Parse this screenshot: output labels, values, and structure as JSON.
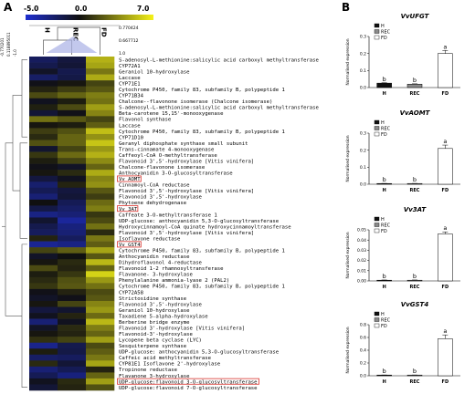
{
  "panel_a_label": "A",
  "panel_b_label": "B",
  "colorbar": {
    "min_label": "-5.0",
    "mid_label": "0.0",
    "max_label": "7.0",
    "low_color": "#1f2fd0",
    "mid_color": "#101010",
    "high_color": "#f5f218"
  },
  "highlight_color": "#d9312b",
  "tree_labels": {
    "top_right_1": "0.770424",
    "top_right_2": "0.667712",
    "top_right_3": "1.0",
    "left_1": "-0.770201",
    "left_2": "0.118895011",
    "left_3": "-1.0"
  },
  "chart_data": [
    {
      "type": "heatmap",
      "columns": [
        "H",
        "REC",
        "FD"
      ],
      "rows": [
        "S-adenosyl-L-methionine:salicylic acid carboxyl methyltransferase",
        "CYP72A1",
        "Geraniol 10-hydroxylase",
        "Laccase",
        "CYP71E1",
        "Cytochrome P450, family 83, subfamily B, polypeptide 1",
        "CYP71B34",
        "Chalcone--flavonone isomerase (Chalcone isomerase)",
        "S-adenosyl-L-methionine:salicylic acid carboxyl methyltransferase",
        "Beta-carotene 15,15'-monooxygenase",
        "Flavonol synthase",
        "Laccase",
        "Cytochrome P450, family 83, subfamily B, polypeptide 1",
        "CYP71D10",
        "Geranyl diphosphate synthase small subunit",
        "Trans-cinnamate 4-monooxygenase",
        "Caffeoyl-CoA O-methyltransferase",
        "Flavonoid 3',5'-hydroxylase [Vitis vinifera]",
        "Chalcone-flavonone isomerase",
        "Anthocyanidin 3-O-glucosyltransferase",
        "Vv AOMT",
        "Cinnamoyl-CoA reductase",
        "Flavonoid 3',5'-hydroxylase [Vitis vinifera]",
        "Flavonoid 3',5'-hydroxylase",
        "Phytoene dehydrogenase",
        "Vv 3AT",
        "Caffeate 3-O-methyltransferase 1",
        "UDP-glucose: anthocyanidin 5,3-O-glucosyltransferase",
        "Hydroxycinnamoyl-CoA quinate hydroxycinnamoyltransferase",
        "Flavonoid 3',5'-hydroxylase [Vitis vinifera]",
        "Isoflavone reductase",
        "Vv GST4",
        "Cytochrome P450, family 83, subfamily B, polypeptide 1",
        "Anthocyanidin reductase",
        "Dihydroflavonol 4-reductase",
        "Flavonoid 1-2 rhamnosyltransferase",
        "Flavanone- 3-hydroxylase",
        "Phenylalanine ammonia-lyase 2 (PAL2)",
        "Cytochrome P450, family 83, subfamily B, polypeptide 1",
        "CYP72A58",
        "Strictosidine synthase",
        "Flavonoid 3',5'-hydroxylase",
        "Geraniol 10-hydroxylase",
        "Taxadiene 5-alpha-hydroxylase",
        "Berberine bridge enzyme",
        "Flavonoid 3'-hydroxylase [Vitis vinifera]",
        "Flavonoid-3'-hydroxylase",
        "Lycopene beta cyclase (LYC)",
        "Sesquiterpene synthase",
        "UDP-glucose: anthocyanidin 5,3-O-glucosyltransferase",
        "Caffeic acid methyltransferase",
        "CYP81E1 Isoflavone 2'-hydroxylase",
        "Tropinone reductase",
        "Flavanone 3-hydroxylase",
        "UDP-glucose:flavonoid 3-O-glucosyltransferase",
        "UDP-glucose:flavonoid 7-O-glucosyltransferase"
      ],
      "highlighted_rows": [
        "Vv AOMT",
        "Vv 3AT",
        "Vv GST4",
        "UDP-glucose:flavonoid 3-O-glucosyltransferase"
      ],
      "values": [
        [
          -2.0,
          -1.2,
          5.0
        ],
        [
          -1.6,
          -1.0,
          4.6
        ],
        [
          -0.6,
          -1.6,
          3.2
        ],
        [
          -2.2,
          -1.4,
          4.8
        ],
        [
          -0.2,
          0.2,
          1.6
        ],
        [
          0.6,
          1.4,
          2.2
        ],
        [
          1.8,
          2.6,
          3.4
        ],
        [
          -0.4,
          0.4,
          3.0
        ],
        [
          0.5,
          1.8,
          4.4
        ],
        [
          -1.0,
          -0.2,
          3.6
        ],
        [
          3.0,
          2.2,
          1.6
        ],
        [
          0.2,
          0.4,
          2.4
        ],
        [
          1.4,
          2.0,
          5.4
        ],
        [
          0.8,
          2.6,
          4.0
        ],
        [
          2.0,
          2.6,
          5.6
        ],
        [
          -0.8,
          1.6,
          4.2
        ],
        [
          1.2,
          2.8,
          5.0
        ],
        [
          0.4,
          1.6,
          3.8
        ],
        [
          -0.2,
          -0.6,
          2.6
        ],
        [
          0.2,
          0.8,
          4.8
        ],
        [
          -1.2,
          -0.4,
          3.6
        ],
        [
          -2.4,
          0.6,
          4.0
        ],
        [
          -1.8,
          -1.2,
          2.2
        ],
        [
          -2.6,
          -1.0,
          1.4
        ],
        [
          0.0,
          -1.8,
          2.8
        ],
        [
          -1.4,
          -2.2,
          3.4
        ],
        [
          -3.0,
          -2.6,
          1.2
        ],
        [
          -0.8,
          -3.6,
          1.8
        ],
        [
          -1.6,
          -2.8,
          3.0
        ],
        [
          -2.0,
          -2.6,
          0.8
        ],
        [
          0.6,
          -2.0,
          3.2
        ],
        [
          -3.4,
          -3.0,
          2.4
        ],
        [
          1.6,
          2.4,
          4.6
        ],
        [
          -0.6,
          0.0,
          2.2
        ],
        [
          0.2,
          0.8,
          5.2
        ],
        [
          1.8,
          0.6,
          2.6
        ],
        [
          0.4,
          1.2,
          6.0
        ],
        [
          0.8,
          2.0,
          4.2
        ],
        [
          1.2,
          2.2,
          3.0
        ],
        [
          -0.2,
          0.6,
          1.8
        ],
        [
          -0.6,
          -0.2,
          2.2
        ],
        [
          0.2,
          1.6,
          3.6
        ],
        [
          -1.2,
          -0.8,
          4.2
        ],
        [
          -0.4,
          0.6,
          2.8
        ],
        [
          -2.6,
          -0.4,
          5.2
        ],
        [
          -0.6,
          0.8,
          3.4
        ],
        [
          0.2,
          0.6,
          2.6
        ],
        [
          1.0,
          1.6,
          4.4
        ],
        [
          -3.2,
          -1.6,
          1.8
        ],
        [
          0.4,
          -1.4,
          2.4
        ],
        [
          -2.2,
          -2.0,
          3.2
        ],
        [
          0.8,
          -1.0,
          4.6
        ],
        [
          -2.6,
          -1.8,
          0.6
        ],
        [
          -1.8,
          -2.8,
          2.6
        ],
        [
          -0.4,
          0.8,
          4.4
        ],
        [
          -1.0,
          0.6,
          2.0
        ]
      ]
    },
    {
      "type": "bar",
      "title": "VvUFGT",
      "ylabel": "Normalised expression",
      "categories": [
        "H",
        "REC",
        "FD"
      ],
      "values": [
        0.026,
        0.02,
        0.2
      ],
      "errors": [
        0.002,
        0.002,
        0.018
      ],
      "sig_letters": [
        "b",
        "b",
        "a"
      ],
      "legend": [
        "H",
        "REC",
        "FD"
      ],
      "ylim": [
        0,
        0.3
      ],
      "yticks": [
        "0.0",
        "0.1",
        "0.2",
        "0.3"
      ]
    },
    {
      "type": "bar",
      "title": "VvAOMT",
      "ylabel": "Normalised expression",
      "categories": [
        "H",
        "REC",
        "FD"
      ],
      "values": [
        0.001,
        0.001,
        0.21
      ],
      "errors": [
        0.0005,
        0.0005,
        0.02
      ],
      "sig_letters": [
        "b",
        "b",
        "a"
      ],
      "legend": [
        "H",
        "REC",
        "FD"
      ],
      "ylim": [
        0,
        0.3
      ],
      "yticks": [
        "0.0",
        "0.1",
        "0.2",
        "0.3"
      ]
    },
    {
      "type": "bar",
      "title": "Vv3AT",
      "ylabel": "Normalised expression",
      "categories": [
        "H",
        "REC",
        "FD"
      ],
      "values": [
        0.0005,
        0.0004,
        0.046
      ],
      "errors": [
        0.0002,
        0.0002,
        0.002
      ],
      "sig_letters": [
        "b",
        "b",
        "a"
      ],
      "legend": [
        "H",
        "REC",
        "FD"
      ],
      "ylim": [
        0,
        0.05
      ],
      "yticks": [
        "0.00",
        "0.01",
        "0.02",
        "0.03",
        "0.04",
        "0.05"
      ]
    },
    {
      "type": "bar",
      "title": "VvGST4",
      "ylabel": "Normalised expression",
      "categories": [
        "H",
        "REC",
        "FD"
      ],
      "values": [
        0.002,
        0.002,
        0.58
      ],
      "errors": [
        0.001,
        0.001,
        0.06
      ],
      "sig_letters": [
        "b",
        "b",
        "a"
      ],
      "legend": [
        "H",
        "REC",
        "FD"
      ],
      "ylim": [
        0,
        0.8
      ],
      "yticks": [
        "0.0",
        "0.2",
        "0.4",
        "0.6",
        "0.8"
      ]
    }
  ],
  "bar_colors": {
    "H": "#111111",
    "REC": "#8a8a8a",
    "FD": "#ffffff"
  }
}
